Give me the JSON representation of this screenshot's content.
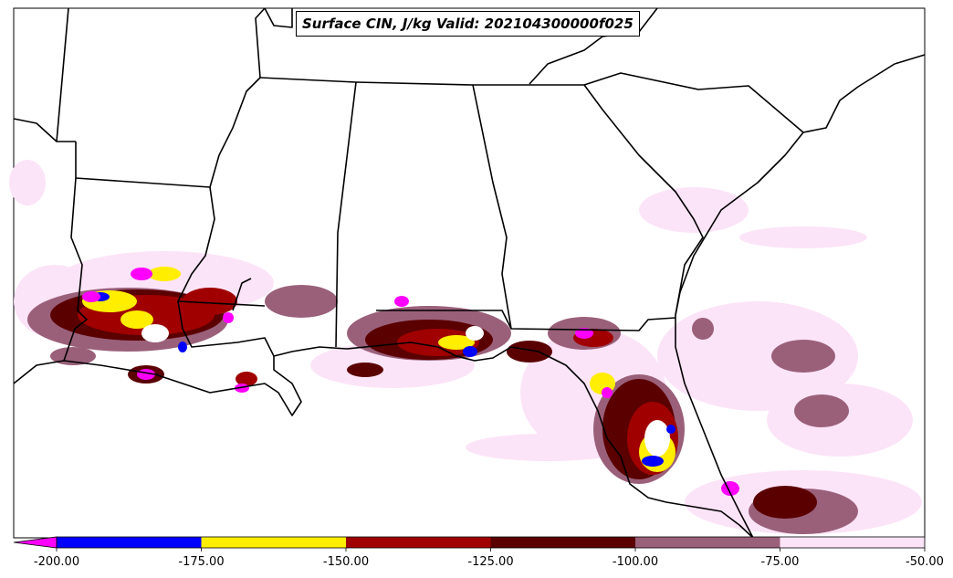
{
  "title": "Surface CIN, J/kg Valid: 202104300000f025",
  "colorbar": {
    "ticks": [
      "-200.00",
      "-175.00",
      "-150.00",
      "-125.00",
      "-100.00",
      "-75.00",
      "-50.00"
    ],
    "bins": [
      {
        "from": -200,
        "to": -175,
        "color": "#0000ff"
      },
      {
        "from": -175,
        "to": -150,
        "color": "#ffee00"
      },
      {
        "from": -150,
        "to": -125,
        "color": "#a00000"
      },
      {
        "from": -125,
        "to": -100,
        "color": "#5a0000"
      },
      {
        "from": -100,
        "to": -75,
        "color": "#9a607a"
      },
      {
        "from": -75,
        "to": -50,
        "color": "#fce4f8"
      }
    ],
    "under_color": "#ff00ff"
  },
  "colors": {
    "very_light": "#fce4f8",
    "mauve": "#9a607a",
    "dark_red": "#5a0000",
    "red": "#a00000",
    "yellow": "#ffee00",
    "blue": "#0000ff",
    "magenta": "#ff00ff"
  }
}
